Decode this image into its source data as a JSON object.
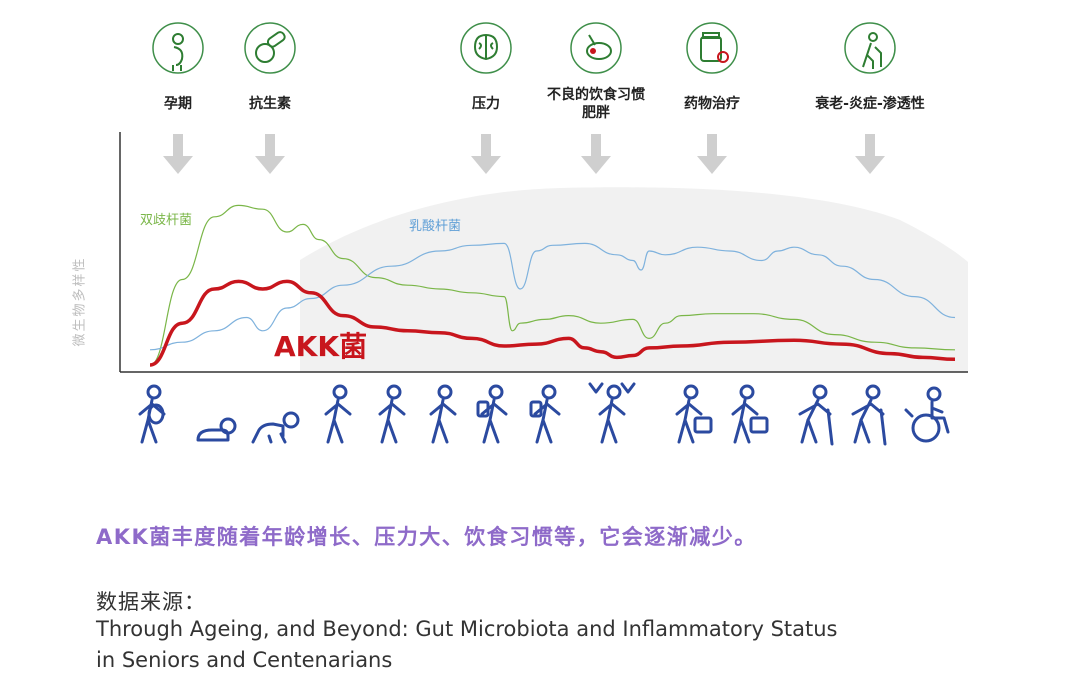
{
  "chart_data": {
    "type": "line",
    "ylabel": "微生物多样性",
    "xlabel": "",
    "title": "",
    "factors": [
      {
        "label": "孕期",
        "icon": "pregnancy-icon"
      },
      {
        "label": "抗生素",
        "icon": "antibiotics-pill-icon"
      },
      {
        "label": "压力",
        "icon": "brain-icon"
      },
      {
        "label": "不良的饮食习惯\n肥胖",
        "icon": "fast-food-icon"
      },
      {
        "label": "药物治疗",
        "icon": "medicine-bottle-icon"
      },
      {
        "label": "衰老-炎症-渗透性",
        "icon": "elderly-person-icon"
      }
    ],
    "series": [
      {
        "name": "双歧杆菌",
        "color": "#7ab648",
        "x": [
          0,
          4,
          8,
          11,
          14,
          17,
          19,
          21,
          24,
          28,
          32,
          36,
          40,
          44,
          45,
          46,
          49,
          52,
          56,
          60,
          62,
          64,
          66,
          70,
          75,
          80,
          85,
          90,
          95,
          100
        ],
        "y": [
          0,
          45,
          78,
          84,
          82,
          70,
          74,
          66,
          56,
          46,
          42,
          40,
          38,
          36,
          18,
          22,
          24,
          26,
          22,
          24,
          14,
          22,
          26,
          27,
          27,
          24,
          16,
          12,
          9,
          8
        ]
      },
      {
        "name": "乳酸杆菌",
        "color": "#7fb2dd",
        "x": [
          0,
          4,
          8,
          12,
          14,
          17,
          20,
          24,
          30,
          36,
          40,
          44,
          46,
          48,
          50,
          54,
          58,
          60,
          61,
          62,
          64,
          68,
          72,
          76,
          78,
          80,
          83,
          86,
          90,
          95,
          100
        ],
        "y": [
          8,
          12,
          18,
          25,
          18,
          30,
          35,
          42,
          52,
          60,
          63,
          64,
          40,
          60,
          63,
          64,
          58,
          55,
          50,
          60,
          58,
          62,
          60,
          55,
          60,
          62,
          58,
          52,
          45,
          36,
          25
        ]
      },
      {
        "name": "AKK菌",
        "color": "#c8161d",
        "x": [
          0,
          4,
          8,
          11,
          14,
          17,
          20,
          24,
          28,
          32,
          36,
          40,
          44,
          48,
          52,
          54,
          56,
          58,
          60,
          62,
          66,
          72,
          80,
          86,
          92,
          96,
          100
        ],
        "y": [
          0,
          22,
          40,
          44,
          40,
          44,
          38,
          26,
          20,
          18,
          17,
          14,
          10,
          11,
          14,
          9,
          7,
          4,
          5,
          9,
          10,
          12,
          13,
          11,
          6,
          4,
          3
        ]
      }
    ],
    "life_stages": [
      "pregnant",
      "infant",
      "crawling-baby",
      "toddler",
      "child-running",
      "child-walking",
      "student-backpack",
      "teen-backpack",
      "party-celebration",
      "worker-briefcase",
      "adult-shopping",
      "elder-walking",
      "elder-cane",
      "wheelchair"
    ]
  },
  "caption": "AKK菌丰度随着年龄增长、压力大、饮食习惯等，它会逐渐减少。",
  "source": {
    "heading": "数据来源：",
    "line1": "Through Ageing, and Beyond: Gut Microbiota and Inflammatory Status",
    "line2": "in Seniors and Centenarians"
  },
  "colors": {
    "green": "#7ab648",
    "blue": "#7fb2dd",
    "red": "#c8161d",
    "navy": "#2b4aa0",
    "caption": "#8e6ac9"
  }
}
